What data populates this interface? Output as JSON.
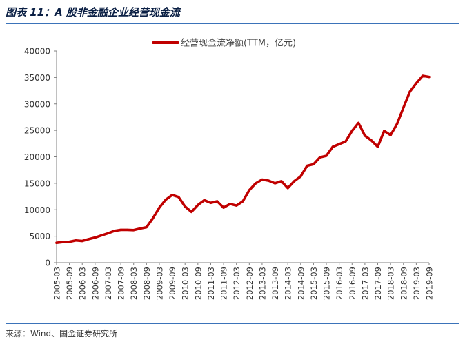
{
  "header": {
    "title": "图表 11：A 股非金融企业经营现金流"
  },
  "footer": {
    "source": "来源：Wind、国金证券研究所"
  },
  "colors": {
    "series": "#c00000",
    "rule": "#3b73b9",
    "axis": "#808080"
  },
  "chart_data": {
    "type": "line",
    "title": "",
    "xlabel": "",
    "ylabel": "",
    "ylim": [
      0,
      40000
    ],
    "yticks": [
      0,
      5000,
      10000,
      15000,
      20000,
      25000,
      30000,
      35000,
      40000
    ],
    "grid": false,
    "legend_position": "top-center",
    "x_ticks": [
      "2005-03",
      "2005-09",
      "2006-03",
      "2006-09",
      "2007-03",
      "2007-09",
      "2008-03",
      "2008-09",
      "2009-03",
      "2009-09",
      "2010-03",
      "2010-09",
      "2011-03",
      "2011-09",
      "2012-03",
      "2012-09",
      "2013-03",
      "2013-09",
      "2014-03",
      "2014-09",
      "2015-03",
      "2015-09",
      "2016-03",
      "2016-09",
      "2017-03",
      "2017-09",
      "2018-03",
      "2018-09",
      "2019-03",
      "2019-09"
    ],
    "x": [
      "2005-03",
      "2005-06",
      "2005-09",
      "2005-12",
      "2006-03",
      "2006-06",
      "2006-09",
      "2006-12",
      "2007-03",
      "2007-06",
      "2007-09",
      "2007-12",
      "2008-03",
      "2008-06",
      "2008-09",
      "2008-12",
      "2009-03",
      "2009-06",
      "2009-09",
      "2009-12",
      "2010-03",
      "2010-06",
      "2010-09",
      "2010-12",
      "2011-03",
      "2011-06",
      "2011-09",
      "2011-12",
      "2012-03",
      "2012-06",
      "2012-09",
      "2012-12",
      "2013-03",
      "2013-06",
      "2013-09",
      "2013-12",
      "2014-03",
      "2014-06",
      "2014-09",
      "2014-12",
      "2015-03",
      "2015-06",
      "2015-09",
      "2015-12",
      "2016-03",
      "2016-06",
      "2016-09",
      "2016-12",
      "2017-03",
      "2017-06",
      "2017-09",
      "2017-12",
      "2018-03",
      "2018-06",
      "2018-09",
      "2018-12",
      "2019-03",
      "2019-06",
      "2019-09"
    ],
    "series": [
      {
        "name": "经营现金流净额(TTM，亿元)",
        "color": "#c00000",
        "values": [
          3750,
          3900,
          3950,
          4200,
          4100,
          4450,
          4750,
          5150,
          5550,
          6000,
          6200,
          6200,
          6150,
          6450,
          6700,
          8400,
          10400,
          11900,
          12800,
          12400,
          10600,
          9600,
          10900,
          11800,
          11300,
          11600,
          10400,
          11100,
          10800,
          11600,
          13700,
          15000,
          15700,
          15500,
          15000,
          15400,
          14100,
          15400,
          16300,
          18300,
          18600,
          19900,
          20200,
          21900,
          22400,
          22900,
          24900,
          26400,
          24000,
          23100,
          21900,
          24900,
          24100,
          26200,
          29300,
          32300,
          33900,
          35300,
          35100
        ]
      }
    ]
  }
}
